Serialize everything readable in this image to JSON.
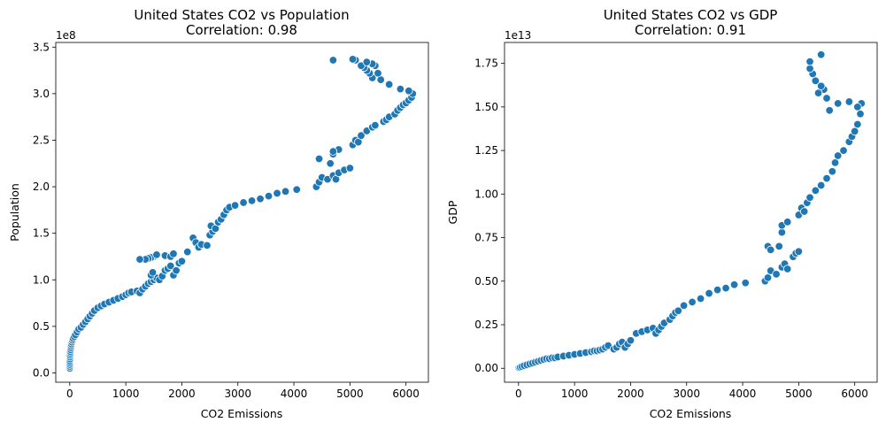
{
  "chart_data": [
    {
      "type": "scatter",
      "title": "United States CO2 vs Population",
      "subtitle": "Correlation: 0.98",
      "xlabel": "CO2 Emissions",
      "ylabel": "Population",
      "y_offset_label": "1e8",
      "xlim": [
        -250,
        6400
      ],
      "ylim": [
        -0.1,
        3.55
      ],
      "x_ticks": [
        0,
        1000,
        2000,
        3000,
        4000,
        5000,
        6000
      ],
      "y_ticks": [
        0.0,
        0.5,
        1.0,
        1.5,
        2.0,
        2.5,
        3.0,
        3.5
      ],
      "y_tick_labels": [
        "0.0",
        "0.5",
        "1.0",
        "1.5",
        "2.0",
        "2.5",
        "3.0",
        "3.5"
      ],
      "marker_color": "#1f77b4",
      "grid": false,
      "points": [
        [
          0,
          0.05
        ],
        [
          0,
          0.07
        ],
        [
          0,
          0.09
        ],
        [
          0,
          0.11
        ],
        [
          0,
          0.13
        ],
        [
          5,
          0.15
        ],
        [
          5,
          0.17
        ],
        [
          5,
          0.19
        ],
        [
          10,
          0.21
        ],
        [
          10,
          0.23
        ],
        [
          15,
          0.25
        ],
        [
          20,
          0.27
        ],
        [
          25,
          0.29
        ],
        [
          30,
          0.31
        ],
        [
          40,
          0.33
        ],
        [
          50,
          0.35
        ],
        [
          60,
          0.37
        ],
        [
          80,
          0.39
        ],
        [
          100,
          0.41
        ],
        [
          130,
          0.44
        ],
        [
          160,
          0.47
        ],
        [
          200,
          0.49
        ],
        [
          240,
          0.52
        ],
        [
          280,
          0.55
        ],
        [
          320,
          0.58
        ],
        [
          360,
          0.61
        ],
        [
          400,
          0.64
        ],
        [
          440,
          0.67
        ],
        [
          500,
          0.7
        ],
        [
          560,
          0.72
        ],
        [
          620,
          0.74
        ],
        [
          700,
          0.76
        ],
        [
          780,
          0.78
        ],
        [
          860,
          0.8
        ],
        [
          940,
          0.82
        ],
        [
          1000,
          0.84
        ],
        [
          1050,
          0.86
        ],
        [
          1100,
          0.87
        ],
        [
          1200,
          0.88
        ],
        [
          1250,
          0.86
        ],
        [
          1300,
          0.9
        ],
        [
          1350,
          0.93
        ],
        [
          1400,
          0.96
        ],
        [
          1450,
          0.98
        ],
        [
          1500,
          1.0
        ],
        [
          1550,
          1.02
        ],
        [
          1450,
          1.05
        ],
        [
          1480,
          1.08
        ],
        [
          1600,
          1.0
        ],
        [
          1650,
          1.04
        ],
        [
          1700,
          1.1
        ],
        [
          1750,
          1.12
        ],
        [
          1800,
          1.15
        ],
        [
          1850,
          1.05
        ],
        [
          1900,
          1.1
        ],
        [
          1950,
          1.18
        ],
        [
          2000,
          1.2
        ],
        [
          1700,
          1.26
        ],
        [
          1800,
          1.25
        ],
        [
          1850,
          1.28
        ],
        [
          1500,
          1.25
        ],
        [
          1450,
          1.24
        ],
        [
          1400,
          1.23
        ],
        [
          1350,
          1.22
        ],
        [
          1250,
          1.22
        ],
        [
          1550,
          1.27
        ],
        [
          2100,
          1.3
        ],
        [
          2200,
          1.45
        ],
        [
          2250,
          1.4
        ],
        [
          2300,
          1.35
        ],
        [
          2350,
          1.38
        ],
        [
          2450,
          1.37
        ],
        [
          2500,
          1.48
        ],
        [
          2550,
          1.52
        ],
        [
          2520,
          1.58
        ],
        [
          2600,
          1.55
        ],
        [
          2650,
          1.62
        ],
        [
          2700,
          1.65
        ],
        [
          2750,
          1.7
        ],
        [
          2800,
          1.75
        ],
        [
          2850,
          1.78
        ],
        [
          2950,
          1.8
        ],
        [
          3100,
          1.83
        ],
        [
          3250,
          1.85
        ],
        [
          3400,
          1.87
        ],
        [
          3550,
          1.9
        ],
        [
          3700,
          1.93
        ],
        [
          3850,
          1.95
        ],
        [
          4050,
          1.97
        ],
        [
          4400,
          2.0
        ],
        [
          4450,
          2.05
        ],
        [
          4500,
          2.1
        ],
        [
          4600,
          2.08
        ],
        [
          4700,
          2.12
        ],
        [
          4750,
          2.08
        ],
        [
          4800,
          2.15
        ],
        [
          4900,
          2.18
        ],
        [
          5000,
          2.2
        ],
        [
          4450,
          2.3
        ],
        [
          4650,
          2.25
        ],
        [
          4700,
          2.35
        ],
        [
          4800,
          2.4
        ],
        [
          4700,
          2.38
        ],
        [
          5050,
          2.45
        ],
        [
          5100,
          2.5
        ],
        [
          5150,
          2.48
        ],
        [
          5200,
          2.55
        ],
        [
          5300,
          2.6
        ],
        [
          5400,
          2.64
        ],
        [
          5450,
          2.66
        ],
        [
          5600,
          2.7
        ],
        [
          5650,
          2.72
        ],
        [
          5700,
          2.75
        ],
        [
          5800,
          2.78
        ],
        [
          5850,
          2.82
        ],
        [
          5900,
          2.85
        ],
        [
          5950,
          2.88
        ],
        [
          6000,
          2.9
        ],
        [
          6050,
          2.93
        ],
        [
          6100,
          2.96
        ],
        [
          6120,
          3.0
        ],
        [
          6050,
          3.03
        ],
        [
          5900,
          3.05
        ],
        [
          5700,
          3.1
        ],
        [
          5550,
          3.15
        ],
        [
          5400,
          3.17
        ],
        [
          5350,
          3.22
        ],
        [
          5300,
          3.25
        ],
        [
          5250,
          3.28
        ],
        [
          5200,
          3.3
        ],
        [
          5450,
          3.3
        ],
        [
          5500,
          3.22
        ],
        [
          5400,
          3.32
        ],
        [
          5300,
          3.34
        ],
        [
          5100,
          3.36
        ],
        [
          5050,
          3.37
        ],
        [
          4700,
          3.36
        ]
      ]
    },
    {
      "type": "scatter",
      "title": "United States CO2 vs GDP",
      "subtitle": "Correlation: 0.91",
      "xlabel": "CO2 Emissions",
      "ylabel": "GDP",
      "y_offset_label": "1e13",
      "xlim": [
        -250,
        6400
      ],
      "ylim": [
        -0.08,
        1.87
      ],
      "x_ticks": [
        0,
        1000,
        2000,
        3000,
        4000,
        5000,
        6000
      ],
      "y_ticks": [
        0.0,
        0.25,
        0.5,
        0.75,
        1.0,
        1.25,
        1.5,
        1.75
      ],
      "y_tick_labels": [
        "0.00",
        "0.25",
        "0.50",
        "0.75",
        "1.00",
        "1.25",
        "1.50",
        "1.75"
      ],
      "marker_color": "#1f77b4",
      "grid": false,
      "points": [
        [
          0,
          0.002
        ],
        [
          10,
          0.004
        ],
        [
          30,
          0.006
        ],
        [
          60,
          0.01
        ],
        [
          100,
          0.015
        ],
        [
          150,
          0.02
        ],
        [
          200,
          0.025
        ],
        [
          250,
          0.03
        ],
        [
          300,
          0.035
        ],
        [
          350,
          0.04
        ],
        [
          400,
          0.045
        ],
        [
          450,
          0.05
        ],
        [
          500,
          0.055
        ],
        [
          550,
          0.055
        ],
        [
          600,
          0.06
        ],
        [
          650,
          0.06
        ],
        [
          700,
          0.065
        ],
        [
          800,
          0.07
        ],
        [
          900,
          0.075
        ],
        [
          1000,
          0.08
        ],
        [
          1100,
          0.085
        ],
        [
          1200,
          0.09
        ],
        [
          1300,
          0.095
        ],
        [
          1350,
          0.1
        ],
        [
          1400,
          0.1
        ],
        [
          1450,
          0.105
        ],
        [
          1500,
          0.11
        ],
        [
          1550,
          0.12
        ],
        [
          1600,
          0.13
        ],
        [
          1700,
          0.11
        ],
        [
          1750,
          0.12
        ],
        [
          1800,
          0.14
        ],
        [
          1850,
          0.15
        ],
        [
          1900,
          0.12
        ],
        [
          1950,
          0.14
        ],
        [
          2000,
          0.16
        ],
        [
          2100,
          0.2
        ],
        [
          2200,
          0.21
        ],
        [
          2300,
          0.22
        ],
        [
          2400,
          0.23
        ],
        [
          2450,
          0.2
        ],
        [
          2500,
          0.22
        ],
        [
          2550,
          0.24
        ],
        [
          2600,
          0.26
        ],
        [
          2700,
          0.28
        ],
        [
          2750,
          0.3
        ],
        [
          2800,
          0.32
        ],
        [
          2850,
          0.33
        ],
        [
          2950,
          0.36
        ],
        [
          3100,
          0.38
        ],
        [
          3250,
          0.4
        ],
        [
          3400,
          0.43
        ],
        [
          3550,
          0.45
        ],
        [
          3700,
          0.46
        ],
        [
          3850,
          0.48
        ],
        [
          4050,
          0.49
        ],
        [
          4400,
          0.5
        ],
        [
          4450,
          0.52
        ],
        [
          4500,
          0.56
        ],
        [
          4600,
          0.54
        ],
        [
          4700,
          0.58
        ],
        [
          4750,
          0.6
        ],
        [
          4800,
          0.57
        ],
        [
          4900,
          0.64
        ],
        [
          4950,
          0.66
        ],
        [
          5000,
          0.67
        ],
        [
          4450,
          0.7
        ],
        [
          4500,
          0.68
        ],
        [
          4650,
          0.7
        ],
        [
          4700,
          0.78
        ],
        [
          4700,
          0.82
        ],
        [
          4800,
          0.84
        ],
        [
          5000,
          0.88
        ],
        [
          5050,
          0.92
        ],
        [
          5100,
          0.9
        ],
        [
          5150,
          0.95
        ],
        [
          5200,
          0.98
        ],
        [
          5300,
          1.02
        ],
        [
          5400,
          1.05
        ],
        [
          5500,
          1.09
        ],
        [
          5600,
          1.13
        ],
        [
          5650,
          1.18
        ],
        [
          5700,
          1.22
        ],
        [
          5800,
          1.25
        ],
        [
          5900,
          1.3
        ],
        [
          5950,
          1.33
        ],
        [
          6000,
          1.36
        ],
        [
          6050,
          1.4
        ],
        [
          6100,
          1.46
        ],
        [
          6120,
          1.52
        ],
        [
          6050,
          1.5
        ],
        [
          5900,
          1.53
        ],
        [
          5700,
          1.52
        ],
        [
          5550,
          1.48
        ],
        [
          5500,
          1.55
        ],
        [
          5450,
          1.6
        ],
        [
          5400,
          1.62
        ],
        [
          5350,
          1.58
        ],
        [
          5300,
          1.65
        ],
        [
          5250,
          1.69
        ],
        [
          5200,
          1.72
        ],
        [
          5400,
          1.8
        ],
        [
          5200,
          1.76
        ]
      ]
    }
  ]
}
